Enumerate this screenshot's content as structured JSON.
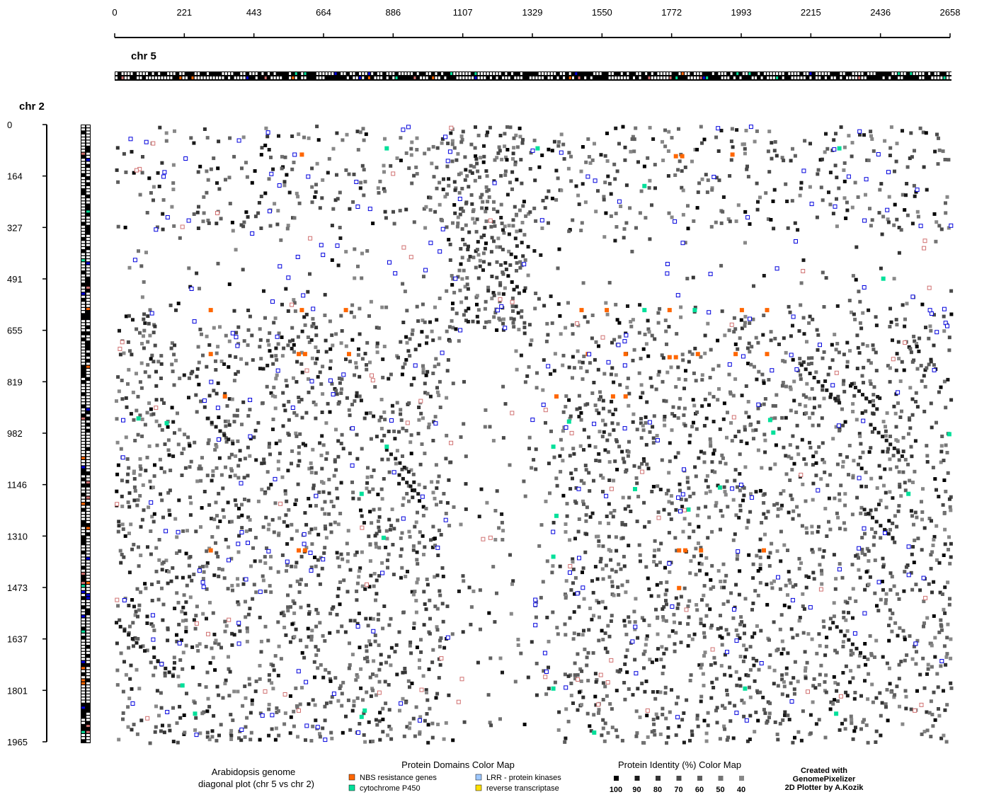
{
  "chart_data": {
    "type": "scatter",
    "title": "",
    "xlabel": "chr 5",
    "ylabel": "chr 2",
    "xlim": [
      0,
      2658
    ],
    "ylim": [
      0,
      1965
    ],
    "x_ticks": [
      "0",
      "221",
      "443",
      "664",
      "886",
      "1107",
      "1329",
      "1550",
      "1772",
      "1993",
      "2215",
      "2436",
      "2658"
    ],
    "y_ticks": [
      "0",
      "164",
      "327",
      "491",
      "655",
      "819",
      "982",
      "1146",
      "1310",
      "1473",
      "1637",
      "1801",
      "1965"
    ],
    "domain_colors": {
      "nbs": "#ff6600",
      "p450": "#00e09a",
      "lrr": "#0000dd",
      "rt": "#ffe000",
      "other": "#d07070"
    },
    "clusters": [
      {
        "x": 2180,
        "y": 760,
        "dx": 120,
        "dy": 120,
        "n": 10
      },
      {
        "x": 2340,
        "y": 820,
        "dx": 80,
        "dy": 80,
        "n": 8
      },
      {
        "x": 2400,
        "y": 950,
        "dx": 100,
        "dy": 100,
        "n": 9
      },
      {
        "x": 2380,
        "y": 1220,
        "dx": 90,
        "dy": 90,
        "n": 8
      },
      {
        "x": 0,
        "y": 1580,
        "dx": 90,
        "dy": 90,
        "n": 8
      },
      {
        "x": 2280,
        "y": 1580,
        "dx": 100,
        "dy": 110,
        "n": 9
      },
      {
        "x": 290,
        "y": 930,
        "dx": 80,
        "dy": 80,
        "n": 7
      },
      {
        "x": 860,
        "y": 1030,
        "dx": 70,
        "dy": 70,
        "n": 6
      },
      {
        "x": 900,
        "y": 1110,
        "dx": 60,
        "dy": 60,
        "n": 6
      },
      {
        "x": 120,
        "y": 1690,
        "dx": 60,
        "dy": 60,
        "n": 6
      },
      {
        "x": 1230,
        "y": 330,
        "dx": 120,
        "dy": 80,
        "n": 7
      }
    ],
    "colored_markers": [
      {
        "x": 45,
        "y": 40,
        "type": "lrr"
      },
      {
        "x": 95,
        "y": 50,
        "type": "lrr"
      },
      {
        "x": 390,
        "y": 45,
        "type": "lrr"
      },
      {
        "x": 590,
        "y": 90,
        "type": "nbs"
      },
      {
        "x": 860,
        "y": 70,
        "type": "p450"
      },
      {
        "x": 1065,
        "y": 5,
        "type": "other"
      },
      {
        "x": 1340,
        "y": 70,
        "type": "p450"
      },
      {
        "x": 1780,
        "y": 95,
        "type": "nbs"
      },
      {
        "x": 1800,
        "y": 95,
        "type": "nbs"
      },
      {
        "x": 1960,
        "y": 90,
        "type": "nbs"
      },
      {
        "x": 2300,
        "y": 70,
        "type": "p450"
      },
      {
        "x": 150,
        "y": 160,
        "type": "lrr"
      },
      {
        "x": 610,
        "y": 160,
        "type": "lrr"
      },
      {
        "x": 1500,
        "y": 160,
        "type": "lrr"
      },
      {
        "x": 1680,
        "y": 190,
        "type": "p450"
      },
      {
        "x": 2330,
        "y": 160,
        "type": "lrr"
      },
      {
        "x": 230,
        "y": 300,
        "type": "lrr"
      },
      {
        "x": 210,
        "y": 320,
        "type": "other"
      },
      {
        "x": 1190,
        "y": 300,
        "type": "other"
      },
      {
        "x": 2380,
        "y": 300,
        "type": "lrr"
      },
      {
        "x": 1890,
        "y": 470,
        "type": "lrr"
      },
      {
        "x": 2440,
        "y": 485,
        "type": "p450"
      },
      {
        "x": 300,
        "y": 585,
        "type": "nbs"
      },
      {
        "x": 590,
        "y": 585,
        "type": "nbs"
      },
      {
        "x": 730,
        "y": 585,
        "type": "nbs"
      },
      {
        "x": 1480,
        "y": 585,
        "type": "nbs"
      },
      {
        "x": 1560,
        "y": 585,
        "type": "nbs"
      },
      {
        "x": 1680,
        "y": 585,
        "type": "p450"
      },
      {
        "x": 1760,
        "y": 585,
        "type": "nbs"
      },
      {
        "x": 1840,
        "y": 585,
        "type": "p450"
      },
      {
        "x": 1990,
        "y": 585,
        "type": "nbs"
      },
      {
        "x": 2070,
        "y": 585,
        "type": "nbs"
      },
      {
        "x": 2610,
        "y": 655,
        "type": "lrr"
      },
      {
        "x": 300,
        "y": 725,
        "type": "nbs"
      },
      {
        "x": 580,
        "y": 725,
        "type": "nbs"
      },
      {
        "x": 600,
        "y": 725,
        "type": "nbs"
      },
      {
        "x": 740,
        "y": 725,
        "type": "nbs"
      },
      {
        "x": 1500,
        "y": 725,
        "type": "nbs"
      },
      {
        "x": 1620,
        "y": 725,
        "type": "nbs"
      },
      {
        "x": 1760,
        "y": 735,
        "type": "nbs"
      },
      {
        "x": 1780,
        "y": 735,
        "type": "nbs"
      },
      {
        "x": 1850,
        "y": 725,
        "type": "nbs"
      },
      {
        "x": 1970,
        "y": 725,
        "type": "nbs"
      },
      {
        "x": 2070,
        "y": 725,
        "type": "nbs"
      },
      {
        "x": 345,
        "y": 860,
        "type": "nbs"
      },
      {
        "x": 1400,
        "y": 860,
        "type": "nbs"
      },
      {
        "x": 1580,
        "y": 860,
        "type": "nbs"
      },
      {
        "x": 1620,
        "y": 860,
        "type": "nbs"
      },
      {
        "x": 70,
        "y": 930,
        "type": "p450"
      },
      {
        "x": 160,
        "y": 945,
        "type": "p450"
      },
      {
        "x": 1440,
        "y": 940,
        "type": "p450"
      },
      {
        "x": 2080,
        "y": 935,
        "type": "p450"
      },
      {
        "x": 2090,
        "y": 975,
        "type": "p450"
      },
      {
        "x": 2650,
        "y": 980,
        "type": "p450"
      },
      {
        "x": 860,
        "y": 1020,
        "type": "p450"
      },
      {
        "x": 1390,
        "y": 1020,
        "type": "p450"
      },
      {
        "x": 1650,
        "y": 1155,
        "type": "p450"
      },
      {
        "x": 1920,
        "y": 1150,
        "type": "p450"
      },
      {
        "x": 1820,
        "y": 1220,
        "type": "p450"
      },
      {
        "x": 780,
        "y": 1170,
        "type": "p450"
      },
      {
        "x": 2520,
        "y": 1170,
        "type": "p450"
      },
      {
        "x": 1400,
        "y": 1240,
        "type": "p450"
      },
      {
        "x": 850,
        "y": 1310,
        "type": "p450"
      },
      {
        "x": 1190,
        "y": 1310,
        "type": "other"
      },
      {
        "x": 300,
        "y": 1350,
        "type": "nbs"
      },
      {
        "x": 580,
        "y": 1350,
        "type": "nbs"
      },
      {
        "x": 600,
        "y": 1350,
        "type": "nbs"
      },
      {
        "x": 1790,
        "y": 1350,
        "type": "nbs"
      },
      {
        "x": 1810,
        "y": 1350,
        "type": "nbs"
      },
      {
        "x": 1860,
        "y": 1350,
        "type": "nbs"
      },
      {
        "x": 2060,
        "y": 1350,
        "type": "nbs"
      },
      {
        "x": 1390,
        "y": 1370,
        "type": "p450"
      },
      {
        "x": 1790,
        "y": 1470,
        "type": "nbs"
      },
      {
        "x": 210,
        "y": 1780,
        "type": "p450"
      },
      {
        "x": 1390,
        "y": 1790,
        "type": "p450"
      },
      {
        "x": 2000,
        "y": 1790,
        "type": "p450"
      },
      {
        "x": 250,
        "y": 1870,
        "type": "p450"
      },
      {
        "x": 790,
        "y": 1860,
        "type": "p450"
      },
      {
        "x": 780,
        "y": 1880,
        "type": "p450"
      },
      {
        "x": 1520,
        "y": 1930,
        "type": "p450"
      },
      {
        "x": 2290,
        "y": 1870,
        "type": "p450"
      },
      {
        "x": 580,
        "y": 1860,
        "type": "other"
      },
      {
        "x": 1690,
        "y": 1860,
        "type": "other"
      },
      {
        "x": 2540,
        "y": 1860,
        "type": "other"
      }
    ]
  },
  "labels": {
    "chr_x": "chr 5",
    "chr_y": "chr 2"
  },
  "footer": {
    "plot_caption_line1": "Arabidopsis genome",
    "plot_caption_line2": "diagonal plot (chr 5 vs chr 2)",
    "domains_title": "Protein Domains Color Map",
    "domain_nbs": "NBS resistance genes",
    "domain_p450": "cytochrome P450",
    "domain_lrr": "LRR - protein kinases",
    "domain_rt": "reverse transcriptase",
    "identity_title": "Protein Identity (%) Color Map",
    "identity_levels": [
      {
        "label": "100",
        "color": "#000000"
      },
      {
        "label": "90",
        "color": "#1a1a1a"
      },
      {
        "label": "80",
        "color": "#333333"
      },
      {
        "label": "70",
        "color": "#4a4a4a"
      },
      {
        "label": "60",
        "color": "#5f5f5f"
      },
      {
        "label": "50",
        "color": "#737373"
      },
      {
        "label": "40",
        "color": "#888888"
      }
    ],
    "credit_line1": "Created with",
    "credit_line2": "GenomePixelizer",
    "credit_line3": "2D Plotter by A.Kozik"
  }
}
